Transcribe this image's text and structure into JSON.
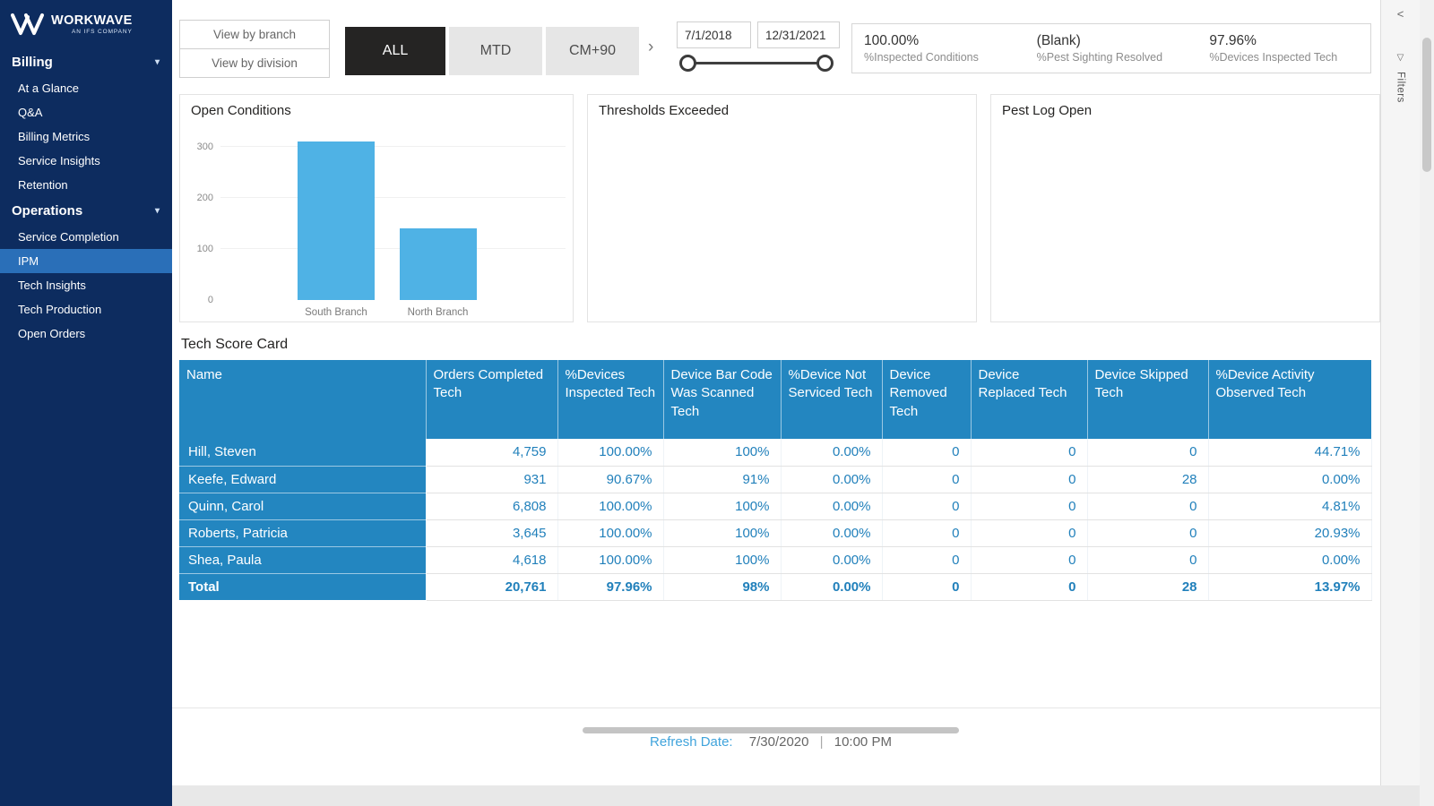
{
  "sidebar": {
    "brand": "WORKWAVE",
    "brand_sub": "AN IFS COMPANY",
    "sections": [
      {
        "label": "Billing",
        "items": [
          {
            "label": "At a Glance",
            "selected": false
          },
          {
            "label": "Q&A",
            "selected": false
          },
          {
            "label": "Billing Metrics",
            "selected": false
          },
          {
            "label": "Service Insights",
            "selected": false
          },
          {
            "label": "Retention",
            "selected": false
          }
        ]
      },
      {
        "label": "Operations",
        "items": [
          {
            "label": "Service Completion",
            "selected": false
          },
          {
            "label": "IPM",
            "selected": true
          },
          {
            "label": "Tech Insights",
            "selected": false
          },
          {
            "label": "Tech Production",
            "selected": false
          },
          {
            "label": "Open Orders",
            "selected": false
          }
        ]
      }
    ]
  },
  "topbar": {
    "view_by_branch": "View by branch",
    "view_by_division": "View by division",
    "periods": [
      {
        "label": "ALL",
        "active": true
      },
      {
        "label": "MTD",
        "active": false
      },
      {
        "label": "CM+90",
        "active": false
      }
    ],
    "next_chevron": "›",
    "date_start": "7/1/2018",
    "date_end": "12/31/2021",
    "kpis": [
      {
        "value": "100.00%",
        "label": "%Inspected Conditions"
      },
      {
        "value": "(Blank)",
        "label": "%Pest Sighting Resolved"
      },
      {
        "value": "97.96%",
        "label": "%Devices Inspected Tech"
      }
    ],
    "filters_label": "Filters"
  },
  "panels": {
    "open_conditions_title": "Open Conditions",
    "thresholds_title": "Thresholds Exceeded",
    "pest_log_title": "Pest Log Open"
  },
  "chart_data": {
    "type": "bar",
    "title": "Open Conditions",
    "categories": [
      "South Branch",
      "North Branch"
    ],
    "values": [
      310,
      140
    ],
    "yticks": [
      0,
      100,
      200,
      300
    ],
    "ylim": [
      0,
      310
    ],
    "xlabel": "",
    "ylabel": "",
    "grid": "faint-horizontal",
    "legend": "none",
    "bar_color": "#4fb2e5"
  },
  "table": {
    "title": "Tech Score Card",
    "columns": [
      "Name",
      "Orders Completed Tech",
      "%Devices Inspected Tech",
      "Device Bar Code Was Scanned Tech",
      "%Device Not Serviced Tech",
      "Device Removed Tech",
      "Device Replaced Tech",
      "Device Skipped Tech",
      "%Device Activity Observed Tech"
    ],
    "rows": [
      [
        "Hill, Steven",
        "4,759",
        "100.00%",
        "100%",
        "0.00%",
        "0",
        "0",
        "0",
        "44.71%"
      ],
      [
        "Keefe, Edward",
        "931",
        "90.67%",
        "91%",
        "0.00%",
        "0",
        "0",
        "28",
        "0.00%"
      ],
      [
        "Quinn, Carol",
        "6,808",
        "100.00%",
        "100%",
        "0.00%",
        "0",
        "0",
        "0",
        "4.81%"
      ],
      [
        "Roberts, Patricia",
        "3,645",
        "100.00%",
        "100%",
        "0.00%",
        "0",
        "0",
        "0",
        "20.93%"
      ],
      [
        "Shea, Paula",
        "4,618",
        "100.00%",
        "100%",
        "0.00%",
        "0",
        "0",
        "0",
        "0.00%"
      ]
    ],
    "total_row": [
      "Total",
      "20,761",
      "97.96%",
      "98%",
      "0.00%",
      "0",
      "0",
      "28",
      "13.97%"
    ]
  },
  "footer": {
    "refresh_label": "Refresh Date:",
    "refresh_date": "7/30/2020",
    "separator": "|",
    "refresh_time": "10:00 PM"
  },
  "colors": {
    "sidebar_bg": "#0d2c5f",
    "selected_item": "#2a6fb8",
    "table_header": "#2386c0",
    "value_text": "#2180bb",
    "bar": "#4fb2e5",
    "active_period": "#252423"
  }
}
